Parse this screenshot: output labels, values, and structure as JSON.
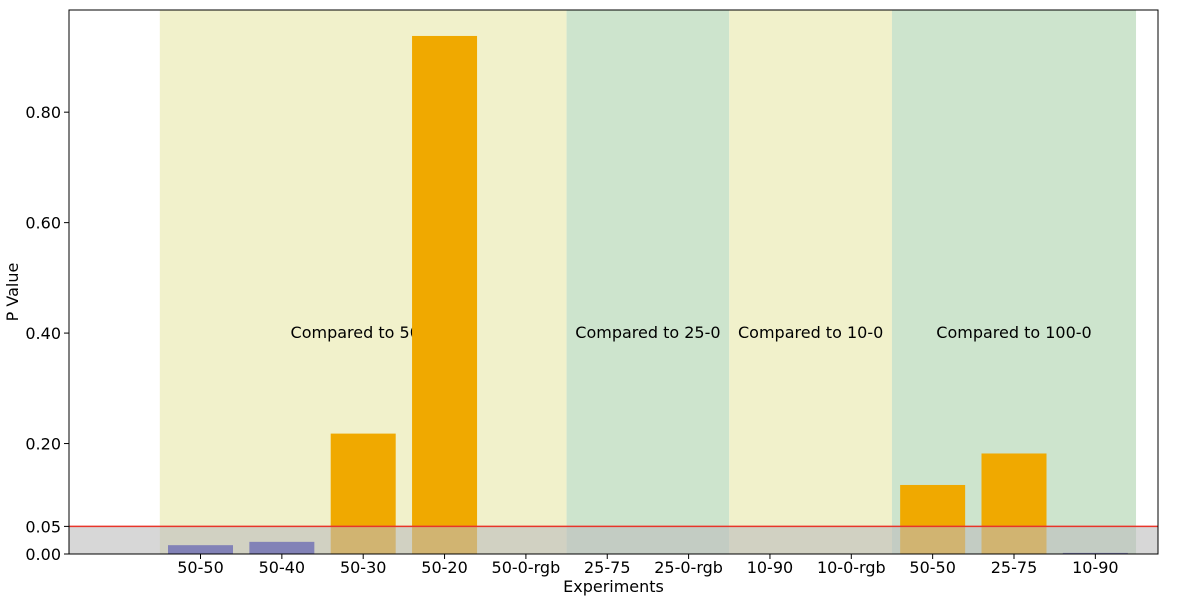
{
  "chart_data": {
    "type": "bar",
    "xlabel": "Experiments",
    "ylabel": "P Value",
    "ylim": [
      0,
      0.985
    ],
    "yticks": [
      {
        "value": 0.0,
        "label": "0.00"
      },
      {
        "value": 0.05,
        "label": "0.05"
      },
      {
        "value": 0.2,
        "label": "0.20"
      },
      {
        "value": 0.4,
        "label": "0.40"
      },
      {
        "value": 0.6,
        "label": "0.60"
      },
      {
        "value": 0.8,
        "label": "0.80"
      }
    ],
    "categories": [
      "50-50",
      "50-40",
      "50-30",
      "50-20",
      "50-0-rgb",
      "25-75",
      "25-0-rgb",
      "10-90",
      "10-0-rgb",
      "50-50",
      "25-75",
      "10-90"
    ],
    "values": [
      0.016,
      0.022,
      0.218,
      0.938,
      0.0,
      0.0,
      0.0,
      0.0,
      0.0,
      0.125,
      0.182,
      0.002
    ],
    "bar_colors": [
      "#2b2bb0",
      "#2b2bb0",
      "#f0a900",
      "#f0a900",
      "#f0a900",
      "#f0a900",
      "#f0a900",
      "#f0a900",
      "#f0a900",
      "#f0a900",
      "#f0a900",
      "#2b2bb0"
    ],
    "regions": [
      {
        "label": "Compared to 50-0",
        "from_index": 0,
        "to_index": 4,
        "color": "#f1f1cb"
      },
      {
        "label": "Compared to 25-0",
        "from_index": 5,
        "to_index": 6,
        "color": "#cde4cd"
      },
      {
        "label": "Compared to 10-0",
        "from_index": 7,
        "to_index": 8,
        "color": "#f1f1cb"
      },
      {
        "label": "Compared to 100-0",
        "from_index": 9,
        "to_index": 11,
        "color": "#cde4cd"
      }
    ],
    "threshold": {
      "value": 0.05,
      "color": "#e8352a"
    },
    "significance_band": {
      "from": 0.0,
      "to": 0.05,
      "color": "#bdbdbd"
    },
    "grid": false
  }
}
